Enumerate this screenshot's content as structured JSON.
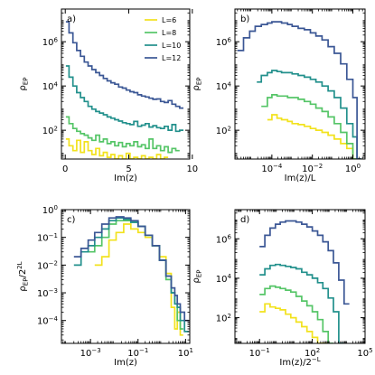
{
  "chart_data": [
    {
      "panel_label": "a)",
      "type": "line",
      "xlabel": "Im(z)",
      "ylabel": "ρ_EP",
      "xscale": "linear",
      "yscale": "log",
      "xlim": [
        -0.3,
        9.8
      ],
      "ylim": [
        5,
        30000000
      ],
      "x_ticks": [
        0,
        5,
        10
      ],
      "x_tick_labels": [
        "0",
        "5",
        "10"
      ],
      "y_ticks": [
        100,
        10000,
        1000000
      ],
      "y_tick_labels": [
        "10^2",
        "10^4",
        "10^6"
      ],
      "legend": {
        "position": "top-right",
        "entries": [
          "L=6",
          "L=8",
          "L=10",
          "L=12"
        ]
      },
      "series": [
        {
          "name": "L=6",
          "color": "#f2e21d",
          "x": [
            0.05,
            0.3,
            0.6,
            0.9,
            1.2,
            1.5,
            1.8,
            2.1,
            2.4,
            2.7,
            3.0,
            3.3,
            3.6,
            3.9,
            4.2,
            4.5,
            4.8,
            5.1,
            5.4,
            5.7,
            6.0,
            6.3,
            6.6,
            6.9,
            7.2,
            7.5,
            7.8
          ],
          "y": [
            40,
            20,
            12,
            35,
            10,
            30,
            12,
            8,
            15,
            7,
            10,
            6,
            8,
            5,
            7,
            5,
            9,
            5,
            6,
            5,
            7,
            5,
            6,
            5,
            8,
            5,
            6
          ]
        },
        {
          "name": "L=8",
          "color": "#55c567",
          "x": [
            0.05,
            0.3,
            0.6,
            0.9,
            1.2,
            1.5,
            1.8,
            2.1,
            2.4,
            2.7,
            3.0,
            3.3,
            3.6,
            3.9,
            4.2,
            4.5,
            4.8,
            5.1,
            5.4,
            5.7,
            6.0,
            6.3,
            6.6,
            6.9,
            7.2,
            7.5,
            7.8,
            8.1,
            8.4,
            8.7
          ],
          "y": [
            400,
            200,
            120,
            90,
            70,
            60,
            45,
            35,
            60,
            30,
            40,
            25,
            30,
            20,
            28,
            18,
            25,
            20,
            30,
            18,
            22,
            15,
            40,
            15,
            20,
            12,
            18,
            10,
            15,
            12
          ]
        },
        {
          "name": "L=10",
          "color": "#22908c",
          "x": [
            0.05,
            0.3,
            0.6,
            0.9,
            1.2,
            1.5,
            1.8,
            2.1,
            2.4,
            2.7,
            3.0,
            3.3,
            3.6,
            3.9,
            4.2,
            4.5,
            4.8,
            5.1,
            5.4,
            5.7,
            6.0,
            6.3,
            6.6,
            6.9,
            7.2,
            7.5,
            7.8,
            8.1,
            8.4,
            8.7,
            9.0
          ],
          "y": [
            80000,
            25000,
            10000,
            5000,
            3000,
            2000,
            1200,
            900,
            700,
            600,
            500,
            400,
            350,
            300,
            260,
            220,
            200,
            180,
            250,
            150,
            170,
            200,
            140,
            160,
            130,
            120,
            150,
            100,
            180,
            90,
            100
          ]
        },
        {
          "name": "L=12",
          "color": "#3b5795",
          "x": [
            0.05,
            0.3,
            0.6,
            0.9,
            1.2,
            1.5,
            1.8,
            2.1,
            2.4,
            2.7,
            3.0,
            3.3,
            3.6,
            3.9,
            4.2,
            4.5,
            4.8,
            5.1,
            5.4,
            5.7,
            6.0,
            6.3,
            6.6,
            6.9,
            7.2,
            7.5,
            7.8,
            8.1,
            8.4,
            8.7,
            9.0
          ],
          "y": [
            8000000,
            2500000,
            900000,
            400000,
            220000,
            120000,
            80000,
            55000,
            40000,
            30000,
            22000,
            17000,
            14000,
            12000,
            9000,
            8000,
            6500,
            5500,
            5000,
            4000,
            3500,
            3200,
            2800,
            2500,
            2600,
            2000,
            1800,
            2200,
            1500,
            1200,
            1000
          ]
        }
      ]
    },
    {
      "panel_label": "b)",
      "type": "line",
      "xlabel": "Im(z)/L",
      "ylabel": "ρ_EP",
      "xscale": "log",
      "yscale": "log",
      "xlim": [
        1.5e-06,
        4
      ],
      "ylim": [
        5,
        30000000
      ],
      "x_ticks": [
        0.0001,
        0.01,
        1
      ],
      "x_tick_labels": [
        "10^−4",
        "10^−2",
        "10^0"
      ],
      "y_ticks": [
        100,
        10000,
        1000000
      ],
      "y_tick_labels": [
        "10^2",
        "10^4",
        "10^6"
      ],
      "series": [
        {
          "name": "L=6",
          "color": "#f2e21d",
          "x": [
            6e-05,
            0.0001,
            0.00018,
            0.0003,
            0.0006,
            0.001,
            0.002,
            0.004,
            0.008,
            0.015,
            0.03,
            0.06,
            0.12,
            0.25,
            0.5,
            1.0,
            1.6
          ],
          "y": [
            300,
            500,
            350,
            300,
            250,
            200,
            180,
            150,
            120,
            100,
            80,
            60,
            40,
            25,
            15,
            5,
            5
          ]
        },
        {
          "name": "L=8",
          "color": "#55c567",
          "x": [
            3e-05,
            6e-05,
            0.0001,
            0.00018,
            0.0003,
            0.0006,
            0.001,
            0.002,
            0.004,
            0.008,
            0.015,
            0.03,
            0.06,
            0.12,
            0.25,
            0.5,
            1.0,
            1.6
          ],
          "y": [
            1200,
            3000,
            4000,
            3500,
            3500,
            3000,
            3000,
            2500,
            2000,
            1500,
            1000,
            700,
            400,
            200,
            80,
            25,
            5,
            5
          ]
        },
        {
          "name": "L=10",
          "color": "#22908c",
          "x": [
            1.8e-05,
            3e-05,
            6e-05,
            0.0001,
            0.00018,
            0.0003,
            0.0006,
            0.001,
            0.002,
            0.004,
            0.008,
            0.015,
            0.03,
            0.06,
            0.12,
            0.25,
            0.5,
            1.0,
            1.6
          ],
          "y": [
            15000,
            30000,
            40000,
            50000,
            45000,
            40000,
            40000,
            35000,
            30000,
            25000,
            20000,
            15000,
            10000,
            6000,
            3000,
            1000,
            200,
            50,
            5
          ]
        },
        {
          "name": "L=12",
          "color": "#3b5795",
          "x": [
            2e-06,
            4e-06,
            8e-06,
            1.5e-05,
            3e-05,
            6e-05,
            0.0001,
            0.00018,
            0.0003,
            0.0006,
            0.001,
            0.002,
            0.004,
            0.008,
            0.015,
            0.03,
            0.06,
            0.12,
            0.25,
            0.5,
            1.0,
            1.6
          ],
          "y": [
            400000,
            1500000,
            3000000,
            5000000,
            6000000,
            7000000,
            8000000,
            8000000,
            7000000,
            6000000,
            5000000,
            4000000,
            3500000,
            2500000,
            1800000,
            1200000,
            600000,
            300000,
            100000,
            20000,
            3000,
            5
          ]
        }
      ]
    },
    {
      "panel_label": "c)",
      "type": "line",
      "xlabel": "Im(z)",
      "ylabel": "ρ_EP/2^{2L}",
      "xscale": "log",
      "yscale": "log",
      "xlim": [
        6e-05,
        15
      ],
      "ylim": [
        1.5e-05,
        1
      ],
      "x_ticks": [
        0.001,
        0.1,
        10
      ],
      "x_tick_labels": [
        "10^−3",
        "10^−1",
        "10^1"
      ],
      "y_ticks": [
        0.0001,
        0.001,
        0.01,
        0.1,
        1
      ],
      "y_tick_labels": [
        "10^−4",
        "10^−3",
        "10^−2",
        "10^−1",
        "10^0"
      ],
      "series": [
        {
          "name": "L=6",
          "color": "#f2e21d",
          "x": [
            0.0015,
            0.003,
            0.006,
            0.012,
            0.025,
            0.05,
            0.1,
            0.2,
            0.4,
            0.8,
            1.5,
            2.5,
            3.5,
            4.5,
            6.0
          ],
          "y": [
            0.01,
            0.02,
            0.08,
            0.15,
            0.3,
            0.2,
            0.15,
            0.1,
            0.05,
            0.02,
            0.005,
            0.0003,
            5e-05,
            0.0002,
            3e-05
          ]
        },
        {
          "name": "L=8",
          "color": "#55c567",
          "x": [
            0.0008,
            0.0015,
            0.003,
            0.006,
            0.012,
            0.025,
            0.05,
            0.1,
            0.2,
            0.4,
            0.8,
            1.5,
            2.5,
            3.5,
            4.5,
            6.0
          ],
          "y": [
            0.03,
            0.05,
            0.1,
            0.3,
            0.4,
            0.4,
            0.35,
            0.25,
            0.12,
            0.05,
            0.015,
            0.003,
            0.001,
            0.0004,
            0.0001,
            5e-05
          ]
        },
        {
          "name": "L=10",
          "color": "#22908c",
          "x": [
            0.0002,
            0.0004,
            0.0008,
            0.0015,
            0.003,
            0.006,
            0.012,
            0.025,
            0.05,
            0.1,
            0.2,
            0.4,
            0.8,
            1.5,
            2.5,
            3.5,
            4.5,
            6.0,
            9.0
          ],
          "y": [
            0.01,
            0.03,
            0.05,
            0.1,
            0.2,
            0.4,
            0.5,
            0.45,
            0.35,
            0.25,
            0.12,
            0.05,
            0.015,
            0.004,
            0.001,
            0.0004,
            0.0003,
            0.0001,
            4e-05
          ]
        },
        {
          "name": "L=12",
          "color": "#3b5795",
          "x": [
            0.0002,
            0.0004,
            0.0008,
            0.0015,
            0.003,
            0.006,
            0.012,
            0.025,
            0.05,
            0.1,
            0.2,
            0.4,
            0.8,
            1.5,
            2.5,
            3.5,
            4.5,
            6.0,
            9.0
          ],
          "y": [
            0.02,
            0.04,
            0.08,
            0.15,
            0.3,
            0.5,
            0.55,
            0.5,
            0.4,
            0.25,
            0.12,
            0.05,
            0.015,
            0.004,
            0.0015,
            0.0008,
            0.0004,
            0.0002,
            0.0001
          ]
        }
      ]
    },
    {
      "panel_label": "d)",
      "type": "line",
      "xlabel": "Im(z)/2^{−L}",
      "ylabel": "ρ_EP",
      "xscale": "log",
      "yscale": "log",
      "xlim": [
        0.004,
        100000
      ],
      "ylim": [
        5,
        30000000
      ],
      "x_ticks": [
        0.1,
        100,
        100000
      ],
      "x_tick_labels": [
        "10^−1",
        "10^2",
        "10^5"
      ],
      "y_ticks": [
        100,
        10000,
        1000000
      ],
      "y_tick_labels": [
        "10^2",
        "10^4",
        "10^6"
      ],
      "series": [
        {
          "name": "L=6",
          "color": "#f2e21d",
          "x": [
            0.1,
            0.2,
            0.4,
            0.8,
            1.5,
            3,
            6,
            12,
            25,
            50,
            100,
            200,
            400
          ],
          "y": [
            200,
            500,
            350,
            300,
            250,
            150,
            100,
            60,
            35,
            20,
            10,
            5,
            5
          ]
        },
        {
          "name": "L=8",
          "color": "#55c567",
          "x": [
            0.1,
            0.2,
            0.4,
            0.8,
            1.5,
            3,
            6,
            12,
            25,
            50,
            100,
            200,
            400,
            800
          ],
          "y": [
            1500,
            3000,
            4000,
            3500,
            3000,
            2500,
            2000,
            1200,
            700,
            400,
            200,
            80,
            20,
            5
          ]
        },
        {
          "name": "L=10",
          "color": "#22908c",
          "x": [
            0.1,
            0.2,
            0.4,
            0.8,
            1.5,
            3,
            6,
            12,
            25,
            50,
            100,
            200,
            400,
            800,
            1600,
            3200
          ],
          "y": [
            15000,
            30000,
            45000,
            50000,
            45000,
            40000,
            35000,
            30000,
            20000,
            15000,
            10000,
            6000,
            3000,
            1000,
            200,
            5
          ]
        },
        {
          "name": "L=12",
          "color": "#3b5795",
          "x": [
            0.1,
            0.2,
            0.4,
            0.8,
            1.5,
            3,
            6,
            12,
            25,
            50,
            100,
            200,
            400,
            800,
            1600,
            3200,
            6400
          ],
          "y": [
            400000,
            1500000,
            3500000,
            5500000,
            7000000,
            8000000,
            8000000,
            7000000,
            5500000,
            4000000,
            2500000,
            1500000,
            700000,
            250000,
            60000,
            8000,
            500
          ]
        }
      ]
    }
  ]
}
